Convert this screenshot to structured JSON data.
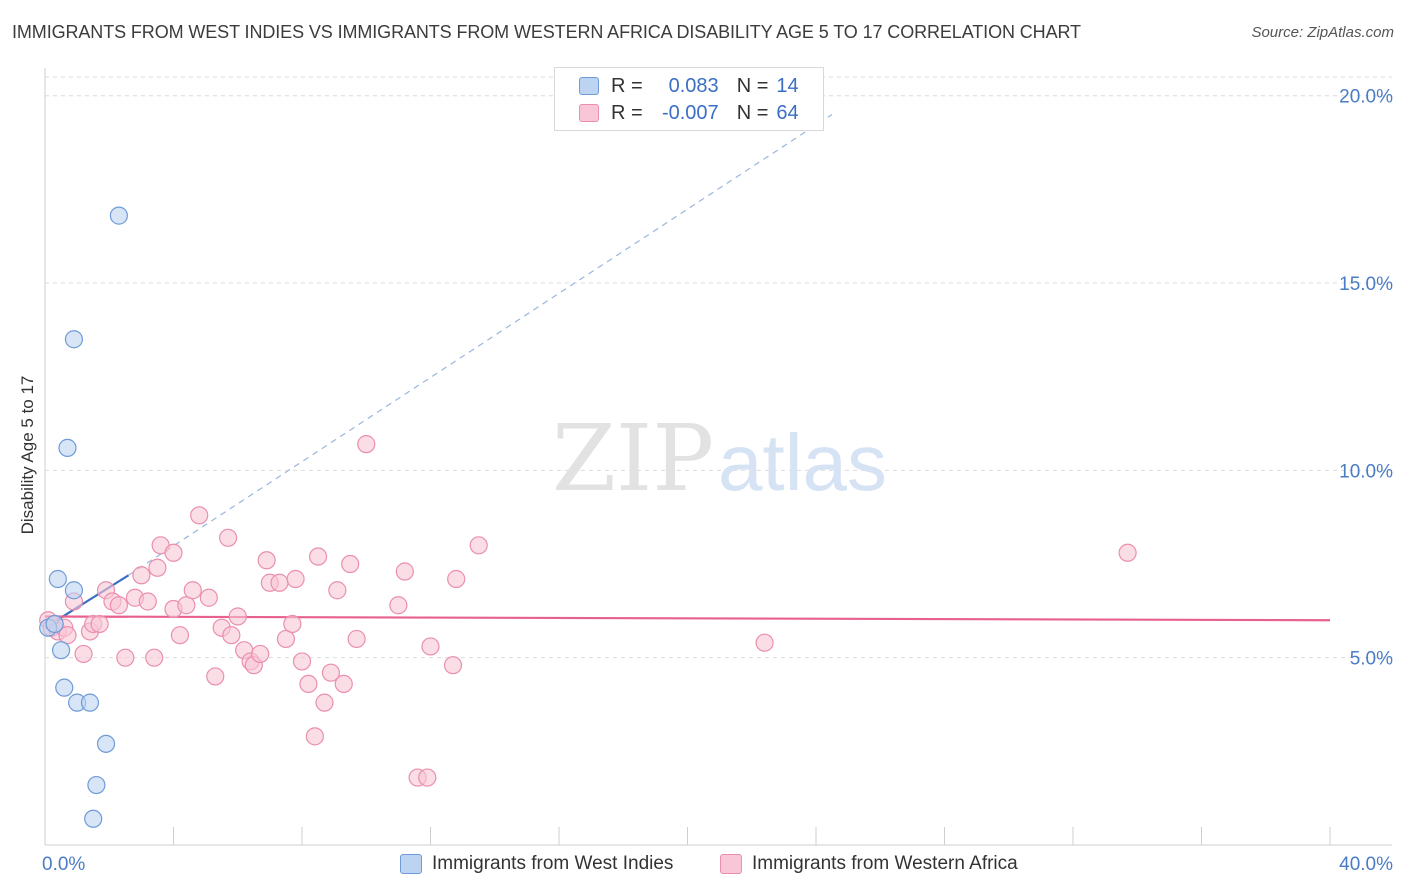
{
  "title": "IMMIGRANTS FROM WEST INDIES VS IMMIGRANTS FROM WESTERN AFRICA DISABILITY AGE 5 TO 17 CORRELATION CHART",
  "source": "Source: ZipAtlas.com",
  "watermark": {
    "zip": "ZIP",
    "atlas": "atlas"
  },
  "legend_stats": {
    "r_label": "R =",
    "n_label": "N =",
    "rows": [
      {
        "r": "0.083",
        "n": "14"
      },
      {
        "r": "-0.007",
        "n": "64"
      }
    ]
  },
  "colors": {
    "west_indies_fill": "#bcd3f2",
    "west_indies_stroke": "#6f9bd8",
    "west_indies_line": "#3a6fc4",
    "western_africa_fill": "#f8c6d6",
    "western_africa_stroke": "#ea8fae",
    "western_africa_line": "#e8608c"
  },
  "chart_data": {
    "type": "scatter",
    "title": "IMMIGRANTS FROM WEST INDIES VS IMMIGRANTS FROM WESTERN AFRICA DISABILITY AGE 5 TO 17 CORRELATION CHART",
    "xlabel": "",
    "ylabel": "Disability Age 5 to 17",
    "xlim": [
      0,
      40
    ],
    "ylim": [
      0,
      20.5
    ],
    "x_tick_labels": [
      "0.0%",
      "40.0%"
    ],
    "y_ticks": [
      5,
      10,
      15,
      20
    ],
    "y_tick_labels": [
      "5.0%",
      "10.0%",
      "15.0%",
      "20.0%"
    ],
    "grid": true,
    "legend_position": "top-center",
    "series": [
      {
        "name": "Immigrants from West Indies",
        "points": [
          [
            0.1,
            5.8
          ],
          [
            0.3,
            5.9
          ],
          [
            0.4,
            7.1
          ],
          [
            0.5,
            5.2
          ],
          [
            0.6,
            4.2
          ],
          [
            0.7,
            10.6
          ],
          [
            0.9,
            13.5
          ],
          [
            0.9,
            6.8
          ],
          [
            1.0,
            3.8
          ],
          [
            1.4,
            3.8
          ],
          [
            1.5,
            0.7
          ],
          [
            1.6,
            1.6
          ],
          [
            1.9,
            2.7
          ],
          [
            2.3,
            16.8
          ]
        ],
        "trend": {
          "x0": 0,
          "y0": 5.8,
          "x1": 2.6,
          "y1": 7.2,
          "dashed_to_x": 24.5,
          "dashed_to_y": 19.5
        }
      },
      {
        "name": "Immigrants from Western Africa",
        "points": [
          [
            0.1,
            6.0
          ],
          [
            0.2,
            5.8
          ],
          [
            0.3,
            5.9
          ],
          [
            0.4,
            5.7
          ],
          [
            0.6,
            5.8
          ],
          [
            0.7,
            5.6
          ],
          [
            0.9,
            6.5
          ],
          [
            1.2,
            5.1
          ],
          [
            1.4,
            5.7
          ],
          [
            1.5,
            5.9
          ],
          [
            1.7,
            5.9
          ],
          [
            1.9,
            6.8
          ],
          [
            2.1,
            6.5
          ],
          [
            2.3,
            6.4
          ],
          [
            2.5,
            5.0
          ],
          [
            2.8,
            6.6
          ],
          [
            3.0,
            7.2
          ],
          [
            3.2,
            6.5
          ],
          [
            3.4,
            5.0
          ],
          [
            3.5,
            7.4
          ],
          [
            3.6,
            8.0
          ],
          [
            4.0,
            6.3
          ],
          [
            4.0,
            7.8
          ],
          [
            4.2,
            5.6
          ],
          [
            4.4,
            6.4
          ],
          [
            4.6,
            6.8
          ],
          [
            4.8,
            8.8
          ],
          [
            5.1,
            6.6
          ],
          [
            5.3,
            4.5
          ],
          [
            5.5,
            5.8
          ],
          [
            5.7,
            8.2
          ],
          [
            5.8,
            5.6
          ],
          [
            6.0,
            6.1
          ],
          [
            6.2,
            5.2
          ],
          [
            6.4,
            4.9
          ],
          [
            6.5,
            4.8
          ],
          [
            6.7,
            5.1
          ],
          [
            6.9,
            7.6
          ],
          [
            7.0,
            7.0
          ],
          [
            7.3,
            7.0
          ],
          [
            7.5,
            5.5
          ],
          [
            7.7,
            5.9
          ],
          [
            7.8,
            7.1
          ],
          [
            8.0,
            4.9
          ],
          [
            8.2,
            4.3
          ],
          [
            8.4,
            2.9
          ],
          [
            8.5,
            7.7
          ],
          [
            8.7,
            3.8
          ],
          [
            8.9,
            4.6
          ],
          [
            9.1,
            6.8
          ],
          [
            9.3,
            4.3
          ],
          [
            9.5,
            7.5
          ],
          [
            9.7,
            5.5
          ],
          [
            10.0,
            10.7
          ],
          [
            11.0,
            6.4
          ],
          [
            11.2,
            7.3
          ],
          [
            11.6,
            1.8
          ],
          [
            11.9,
            1.8
          ],
          [
            12.0,
            5.3
          ],
          [
            12.7,
            4.8
          ],
          [
            12.8,
            7.1
          ],
          [
            13.5,
            8.0
          ],
          [
            22.4,
            5.4
          ],
          [
            33.7,
            7.8
          ]
        ],
        "trend": {
          "x0": 0,
          "y0": 6.1,
          "x1": 40,
          "y1": 6.0
        }
      }
    ]
  }
}
